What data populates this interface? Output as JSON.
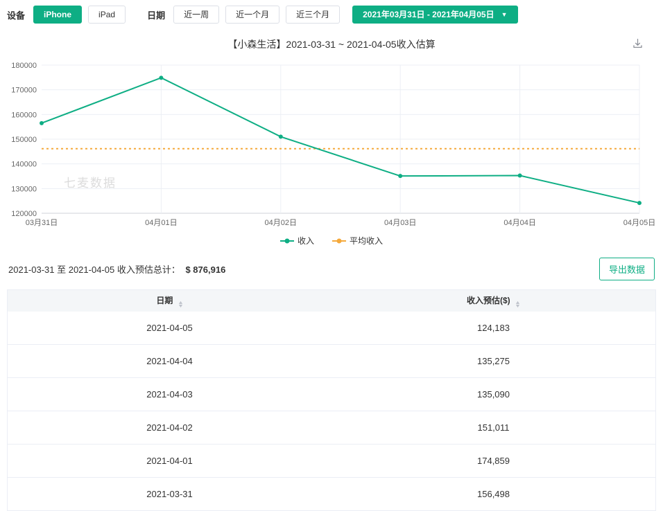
{
  "colors": {
    "accent": "#0eae84",
    "average_line": "#f5a93b",
    "grid": "#eceff4"
  },
  "icons": {
    "caret_down": "▼",
    "sort_asc": "▲",
    "sort_desc": "▼",
    "download": "download-arrow"
  },
  "topbar": {
    "device_label": "设备",
    "device_options": [
      {
        "label": "iPhone",
        "active": true
      },
      {
        "label": "iPad",
        "active": false
      }
    ],
    "date_label": "日期",
    "range_options": [
      "近一周",
      "近一个月",
      "近三个月"
    ],
    "date_range": "2021年03月31日 - 2021年04月05日"
  },
  "chart": {
    "title": "【小森生活】2021-03-31 ~ 2021-04-05收入估算"
  },
  "chart_data": {
    "type": "line",
    "x": [
      "03月31日",
      "04月01日",
      "04月02日",
      "04月03日",
      "04月04日",
      "04月05日"
    ],
    "series": [
      {
        "name": "收入",
        "color": "#0eae84",
        "style": "solid",
        "values": [
          156498,
          174859,
          151011,
          135090,
          135275,
          124183
        ]
      },
      {
        "name": "平均收入",
        "color": "#f5a93b",
        "style": "dotted",
        "values": [
          146153,
          146153,
          146153,
          146153,
          146153,
          146153
        ]
      }
    ],
    "ylim": [
      120000,
      180000
    ],
    "ytick_step": 10000,
    "grid": true,
    "legend_position": "bottom",
    "watermark": "七麦数据"
  },
  "summary": {
    "label": "2021-03-31 至 2021-04-05 收入预估总计：",
    "total": "$ 876,916",
    "export_label": "导出数据"
  },
  "table": {
    "headers": [
      "日期",
      "收入预估($)"
    ],
    "rows": [
      [
        "2021-04-05",
        "124,183"
      ],
      [
        "2021-04-04",
        "135,275"
      ],
      [
        "2021-04-03",
        "135,090"
      ],
      [
        "2021-04-02",
        "151,011"
      ],
      [
        "2021-04-01",
        "174,859"
      ],
      [
        "2021-03-31",
        "156,498"
      ]
    ]
  }
}
